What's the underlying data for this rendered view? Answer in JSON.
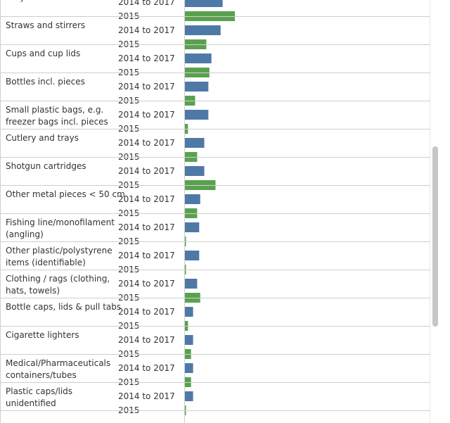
{
  "chart_data": {
    "type": "bar",
    "orientation": "horizontal",
    "period_labels": [
      "2014 to 2017",
      "2015"
    ],
    "colors": {
      "2014 to 2017": "#4e79a7",
      "2015": "#59a14f"
    },
    "xlim": [
      0,
      100
    ],
    "grid": false,
    "categories": [
      {
        "lines": [
          "Lolly sticks"
        ],
        "values": [
          18.5,
          24.5
        ]
      },
      {
        "lines": [
          "Straws and stirrers"
        ],
        "values": [
          17.5,
          10.5
        ]
      },
      {
        "lines": [
          "Cups and cup lids"
        ],
        "values": [
          13.0,
          12.0
        ]
      },
      {
        "lines": [
          "Bottles incl. pieces"
        ],
        "values": [
          11.5,
          5.0
        ]
      },
      {
        "lines": [
          "Small plastic bags, e.g.",
          "freezer bags incl. pieces"
        ],
        "values": [
          11.5,
          1.5
        ]
      },
      {
        "lines": [
          "Cutlery and trays"
        ],
        "values": [
          9.5,
          6.0
        ]
      },
      {
        "lines": [
          "Shotgun cartridges"
        ],
        "values": [
          9.5,
          15.0
        ]
      },
      {
        "lines": [
          "Other metal pieces < 50 cm"
        ],
        "values": [
          7.5,
          6.0
        ]
      },
      {
        "lines": [
          "Fishing line/monofilament",
          "(angling)"
        ],
        "values": [
          7.0,
          0.5
        ]
      },
      {
        "lines": [
          "Other plastic/polystyrene",
          "items (identifiable)"
        ],
        "values": [
          7.0,
          0.5
        ]
      },
      {
        "lines": [
          "Clothing / rags (clothing,",
          "hats, towels)"
        ],
        "values": [
          6.0,
          7.5
        ]
      },
      {
        "lines": [
          "Bottle caps, lids & pull tabs"
        ],
        "values": [
          4.0,
          1.5
        ]
      },
      {
        "lines": [
          "Cigarette lighters"
        ],
        "values": [
          4.0,
          3.0
        ]
      },
      {
        "lines": [
          "Medical/Pharmaceuticals",
          "containers/tubes"
        ],
        "values": [
          4.0,
          3.0
        ]
      },
      {
        "lines": [
          "Plastic caps/lids",
          "unidentified"
        ],
        "values": [
          4.0,
          0.5
        ]
      }
    ]
  }
}
